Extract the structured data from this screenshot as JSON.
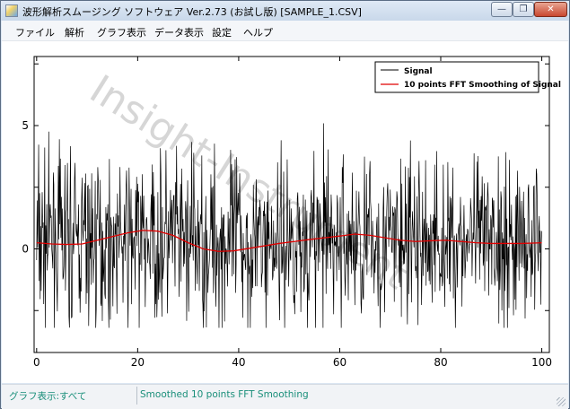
{
  "window": {
    "title": "波形解析スムージング ソフトウェア Ver.2.73 (お試し版)  [SAMPLE_1.CSV]",
    "min_glyph": "—",
    "max_glyph": "❐",
    "close_glyph": "✕"
  },
  "menu": {
    "items": [
      "ファイル",
      "解析",
      "グラフ表示",
      "データ表示",
      "設定",
      "ヘルプ"
    ]
  },
  "watermark": "Insight-Instrument",
  "chart_data": {
    "type": "line",
    "xlim": [
      -0.5,
      101.5
    ],
    "ylim": [
      -4.2,
      7.8
    ],
    "x_ticks": [
      0,
      20,
      40,
      60,
      80,
      100
    ],
    "x_tick_labels": [
      "0",
      "20",
      "40",
      "60",
      "80",
      "100"
    ],
    "y_ticks": [
      -2.5,
      0,
      2.5,
      5,
      7.5
    ],
    "y_tick_labels": [
      "0",
      "5"
    ],
    "y_labeled_ticks": [
      0,
      5
    ],
    "legend_position": "top-right",
    "series": [
      {
        "name": "Signal",
        "color": "#000000",
        "x_range": [
          0,
          100
        ],
        "points": 1001,
        "y_range_approx": [
          -3.2,
          7.1
        ]
      },
      {
        "name": "10 points FFT Smoothing of Signal",
        "color": "#e00000",
        "x": [
          0,
          3,
          6,
          9,
          12,
          15,
          18,
          21,
          24,
          27,
          30,
          33,
          36,
          39,
          42,
          45,
          48,
          51,
          54,
          57,
          60,
          63,
          66,
          69,
          72,
          75,
          78,
          81,
          84,
          87,
          90,
          93,
          96,
          99,
          100
        ],
        "y": [
          0.25,
          0.2,
          0.18,
          0.2,
          0.35,
          0.5,
          0.65,
          0.75,
          0.72,
          0.55,
          0.25,
          0.0,
          -0.1,
          -0.08,
          0.02,
          0.12,
          0.22,
          0.3,
          0.38,
          0.45,
          0.52,
          0.6,
          0.55,
          0.45,
          0.35,
          0.3,
          0.33,
          0.35,
          0.3,
          0.25,
          0.22,
          0.22,
          0.22,
          0.24,
          0.25
        ]
      }
    ]
  },
  "status": {
    "left": "グラフ表示:すべて",
    "right": "Smoothed 10 points FFT Smoothing"
  }
}
